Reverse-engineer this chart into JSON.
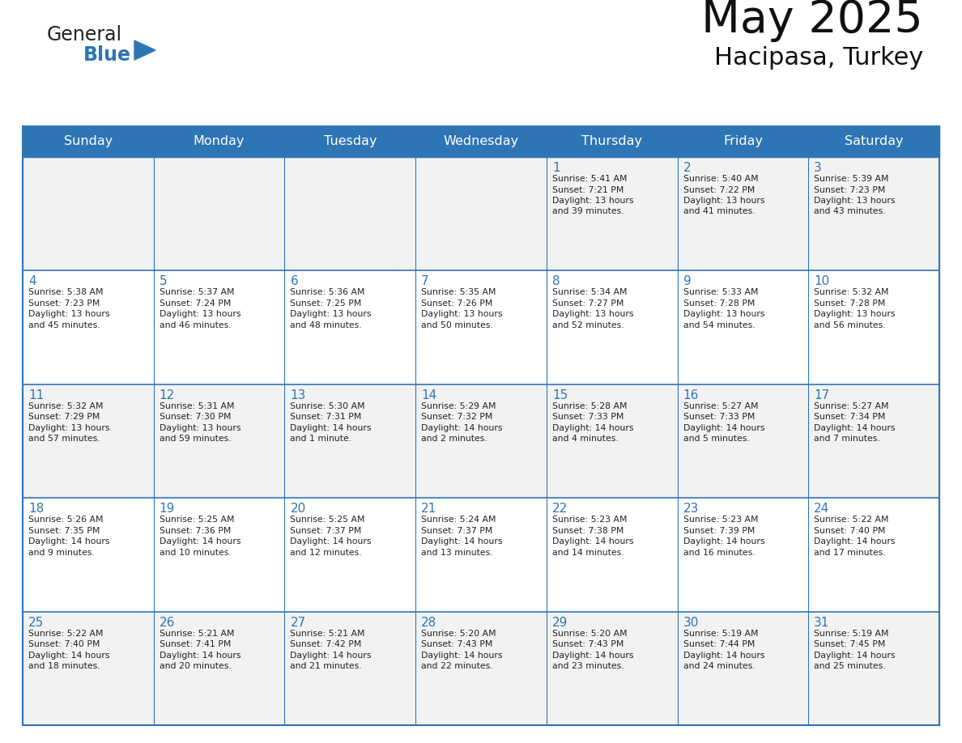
{
  "title": "May 2025",
  "subtitle": "Hacipasa, Turkey",
  "days_of_week": [
    "Sunday",
    "Monday",
    "Tuesday",
    "Wednesday",
    "Thursday",
    "Friday",
    "Saturday"
  ],
  "header_bg": "#2E75B6",
  "header_text_color": "#FFFFFF",
  "cell_bg_odd": "#F2F2F2",
  "cell_bg_even": "#FFFFFF",
  "text_color_dark": "#222222",
  "text_color_blue": "#2E75B6",
  "line_color": "#2E75B6",
  "logo_general_color": "#222222",
  "logo_blue_color": "#2E75B6",
  "calendar_data": [
    [
      {
        "day": "",
        "info": ""
      },
      {
        "day": "",
        "info": ""
      },
      {
        "day": "",
        "info": ""
      },
      {
        "day": "",
        "info": ""
      },
      {
        "day": "1",
        "info": "Sunrise: 5:41 AM\nSunset: 7:21 PM\nDaylight: 13 hours\nand 39 minutes."
      },
      {
        "day": "2",
        "info": "Sunrise: 5:40 AM\nSunset: 7:22 PM\nDaylight: 13 hours\nand 41 minutes."
      },
      {
        "day": "3",
        "info": "Sunrise: 5:39 AM\nSunset: 7:23 PM\nDaylight: 13 hours\nand 43 minutes."
      }
    ],
    [
      {
        "day": "4",
        "info": "Sunrise: 5:38 AM\nSunset: 7:23 PM\nDaylight: 13 hours\nand 45 minutes."
      },
      {
        "day": "5",
        "info": "Sunrise: 5:37 AM\nSunset: 7:24 PM\nDaylight: 13 hours\nand 46 minutes."
      },
      {
        "day": "6",
        "info": "Sunrise: 5:36 AM\nSunset: 7:25 PM\nDaylight: 13 hours\nand 48 minutes."
      },
      {
        "day": "7",
        "info": "Sunrise: 5:35 AM\nSunset: 7:26 PM\nDaylight: 13 hours\nand 50 minutes."
      },
      {
        "day": "8",
        "info": "Sunrise: 5:34 AM\nSunset: 7:27 PM\nDaylight: 13 hours\nand 52 minutes."
      },
      {
        "day": "9",
        "info": "Sunrise: 5:33 AM\nSunset: 7:28 PM\nDaylight: 13 hours\nand 54 minutes."
      },
      {
        "day": "10",
        "info": "Sunrise: 5:32 AM\nSunset: 7:28 PM\nDaylight: 13 hours\nand 56 minutes."
      }
    ],
    [
      {
        "day": "11",
        "info": "Sunrise: 5:32 AM\nSunset: 7:29 PM\nDaylight: 13 hours\nand 57 minutes."
      },
      {
        "day": "12",
        "info": "Sunrise: 5:31 AM\nSunset: 7:30 PM\nDaylight: 13 hours\nand 59 minutes."
      },
      {
        "day": "13",
        "info": "Sunrise: 5:30 AM\nSunset: 7:31 PM\nDaylight: 14 hours\nand 1 minute."
      },
      {
        "day": "14",
        "info": "Sunrise: 5:29 AM\nSunset: 7:32 PM\nDaylight: 14 hours\nand 2 minutes."
      },
      {
        "day": "15",
        "info": "Sunrise: 5:28 AM\nSunset: 7:33 PM\nDaylight: 14 hours\nand 4 minutes."
      },
      {
        "day": "16",
        "info": "Sunrise: 5:27 AM\nSunset: 7:33 PM\nDaylight: 14 hours\nand 5 minutes."
      },
      {
        "day": "17",
        "info": "Sunrise: 5:27 AM\nSunset: 7:34 PM\nDaylight: 14 hours\nand 7 minutes."
      }
    ],
    [
      {
        "day": "18",
        "info": "Sunrise: 5:26 AM\nSunset: 7:35 PM\nDaylight: 14 hours\nand 9 minutes."
      },
      {
        "day": "19",
        "info": "Sunrise: 5:25 AM\nSunset: 7:36 PM\nDaylight: 14 hours\nand 10 minutes."
      },
      {
        "day": "20",
        "info": "Sunrise: 5:25 AM\nSunset: 7:37 PM\nDaylight: 14 hours\nand 12 minutes."
      },
      {
        "day": "21",
        "info": "Sunrise: 5:24 AM\nSunset: 7:37 PM\nDaylight: 14 hours\nand 13 minutes."
      },
      {
        "day": "22",
        "info": "Sunrise: 5:23 AM\nSunset: 7:38 PM\nDaylight: 14 hours\nand 14 minutes."
      },
      {
        "day": "23",
        "info": "Sunrise: 5:23 AM\nSunset: 7:39 PM\nDaylight: 14 hours\nand 16 minutes."
      },
      {
        "day": "24",
        "info": "Sunrise: 5:22 AM\nSunset: 7:40 PM\nDaylight: 14 hours\nand 17 minutes."
      }
    ],
    [
      {
        "day": "25",
        "info": "Sunrise: 5:22 AM\nSunset: 7:40 PM\nDaylight: 14 hours\nand 18 minutes."
      },
      {
        "day": "26",
        "info": "Sunrise: 5:21 AM\nSunset: 7:41 PM\nDaylight: 14 hours\nand 20 minutes."
      },
      {
        "day": "27",
        "info": "Sunrise: 5:21 AM\nSunset: 7:42 PM\nDaylight: 14 hours\nand 21 minutes."
      },
      {
        "day": "28",
        "info": "Sunrise: 5:20 AM\nSunset: 7:43 PM\nDaylight: 14 hours\nand 22 minutes."
      },
      {
        "day": "29",
        "info": "Sunrise: 5:20 AM\nSunset: 7:43 PM\nDaylight: 14 hours\nand 23 minutes."
      },
      {
        "day": "30",
        "info": "Sunrise: 5:19 AM\nSunset: 7:44 PM\nDaylight: 14 hours\nand 24 minutes."
      },
      {
        "day": "31",
        "info": "Sunrise: 5:19 AM\nSunset: 7:45 PM\nDaylight: 14 hours\nand 25 minutes."
      }
    ]
  ]
}
